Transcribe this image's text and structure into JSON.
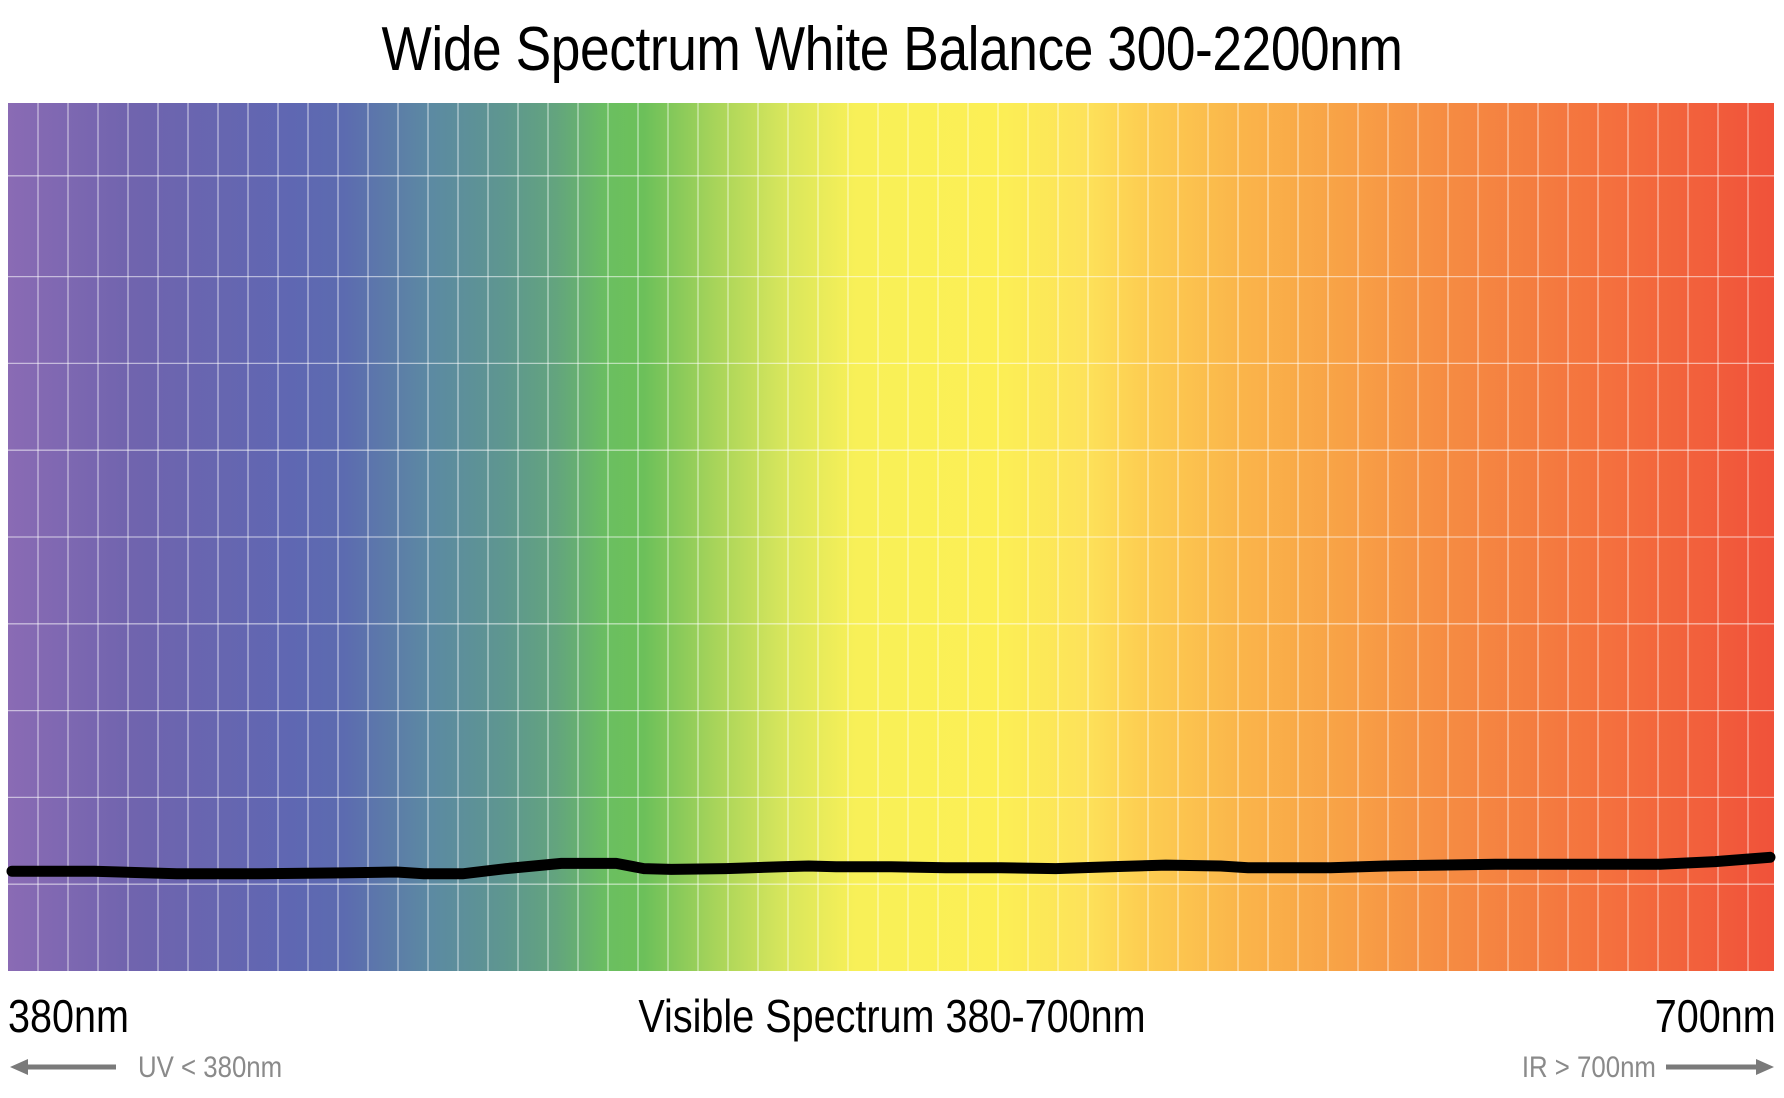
{
  "chart_data": {
    "type": "line",
    "title": "Wide Spectrum White Balance 300-2200nm",
    "xlabel": "Visible Spectrum 380-700nm",
    "x_start_label": "380nm",
    "x_end_label": "700nm",
    "uv_note": "UV < 380nm",
    "ir_note": "IR > 700nm",
    "xlim": [
      380,
      700
    ],
    "ylim": [
      0,
      1
    ],
    "grid": true,
    "background": "visible-spectrum-gradient",
    "series": [
      {
        "color": "#000000",
        "x": [
          380,
          395,
          410,
          425,
          440,
          450,
          455,
          462,
          470,
          480,
          490,
          495,
          500,
          510,
          520,
          525,
          530,
          540,
          550,
          560,
          570,
          580,
          590,
          600,
          605,
          610,
          620,
          630,
          640,
          650,
          660,
          670,
          680,
          690,
          700
        ],
        "y": [
          0.115,
          0.115,
          0.112,
          0.112,
          0.113,
          0.114,
          0.112,
          0.112,
          0.118,
          0.124,
          0.124,
          0.118,
          0.117,
          0.118,
          0.12,
          0.121,
          0.12,
          0.12,
          0.119,
          0.119,
          0.118,
          0.12,
          0.122,
          0.121,
          0.119,
          0.119,
          0.119,
          0.121,
          0.122,
          0.123,
          0.123,
          0.123,
          0.123,
          0.126,
          0.131
        ]
      }
    ]
  },
  "arrow_color": "#7a7a7a"
}
